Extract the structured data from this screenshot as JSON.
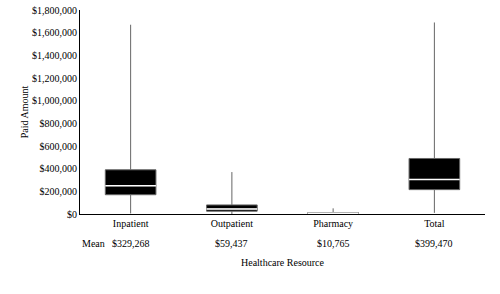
{
  "chart_data": {
    "type": "box",
    "x_label": "Healthcare Resource",
    "y_label": "Paid Amount",
    "categories": [
      "Inpatient",
      "Outpatient",
      "Pharmacy",
      "Total"
    ],
    "min": [
      5000,
      0,
      0,
      10000
    ],
    "q1": [
      170000,
      25000,
      3000,
      215000
    ],
    "median": [
      250000,
      45000,
      7000,
      305000
    ],
    "q3": [
      390000,
      80000,
      13000,
      490000
    ],
    "max": [
      1670000,
      370000,
      50000,
      1690000
    ],
    "mean_title": "Mean",
    "means": [
      329268,
      59437,
      10765,
      399470
    ],
    "mean_labels": [
      "$329,268",
      "$59,437",
      "$10,765",
      "$399,470"
    ],
    "color": "#000000",
    "ylim": [
      0,
      1800000
    ],
    "yticks": [
      {
        "value": 0,
        "label": "$0"
      },
      {
        "value": 200000,
        "label": "$200,000"
      },
      {
        "value": 400000,
        "label": "$400,000"
      },
      {
        "value": 600000,
        "label": "$600,000"
      },
      {
        "value": 800000,
        "label": "$800,000"
      },
      {
        "value": 1000000,
        "label": "$1,000,000"
      },
      {
        "value": 1200000,
        "label": "$1,200,000"
      },
      {
        "value": 1400000,
        "label": "$1,400,000"
      },
      {
        "value": 1600000,
        "label": "$1,600,000"
      },
      {
        "value": 1800000,
        "label": "$1,800,000"
      }
    ],
    "grid": false
  }
}
